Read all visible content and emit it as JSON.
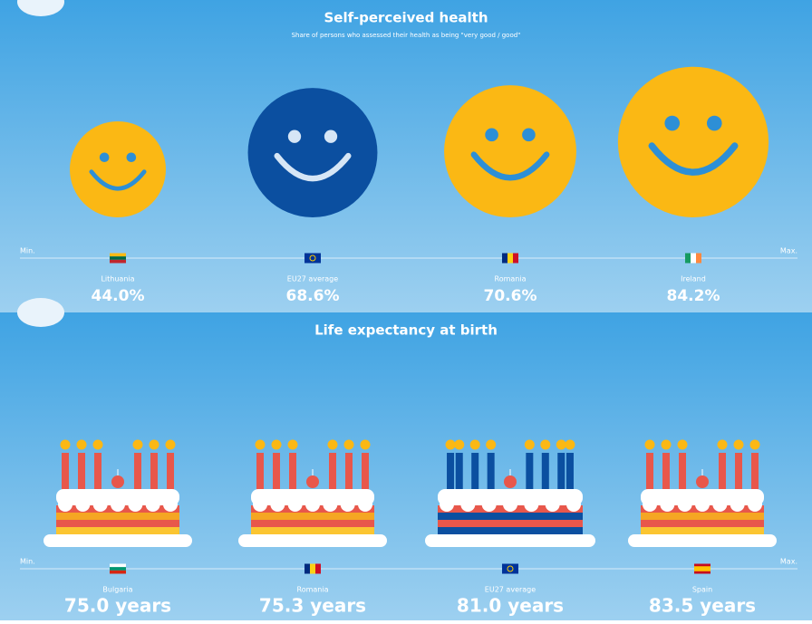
{
  "panels": [
    {
      "title": "Self-perceived health",
      "subtitle": "Share of persons who assessed their health as being \"very good / good\"",
      "min_label": "Min.",
      "max_label": "Max.",
      "items": [
        {
          "name": "Lithuania",
          "value": 44.0,
          "label": "44.0%"
        },
        {
          "name": "EU27 average",
          "value": 68.6,
          "label": "68.6%"
        },
        {
          "name": "Romania",
          "value": 70.6,
          "label": "70.6%"
        },
        {
          "name": "Ireland",
          "value": 84.2,
          "label": "84.2%"
        }
      ]
    },
    {
      "title": "Life expectancy at birth",
      "min_label": "Min.",
      "max_label": "Max.",
      "items": [
        {
          "name": "Bulgaria",
          "value": 75.0,
          "label": "75.0 years"
        },
        {
          "name": "Romania",
          "value": 75.3,
          "label": "75.3 years"
        },
        {
          "name": "EU27 average",
          "value": 81.0,
          "label": "81.0 years"
        },
        {
          "name": "Spain",
          "value": 83.5,
          "label": "83.5 years"
        }
      ]
    }
  ]
}
